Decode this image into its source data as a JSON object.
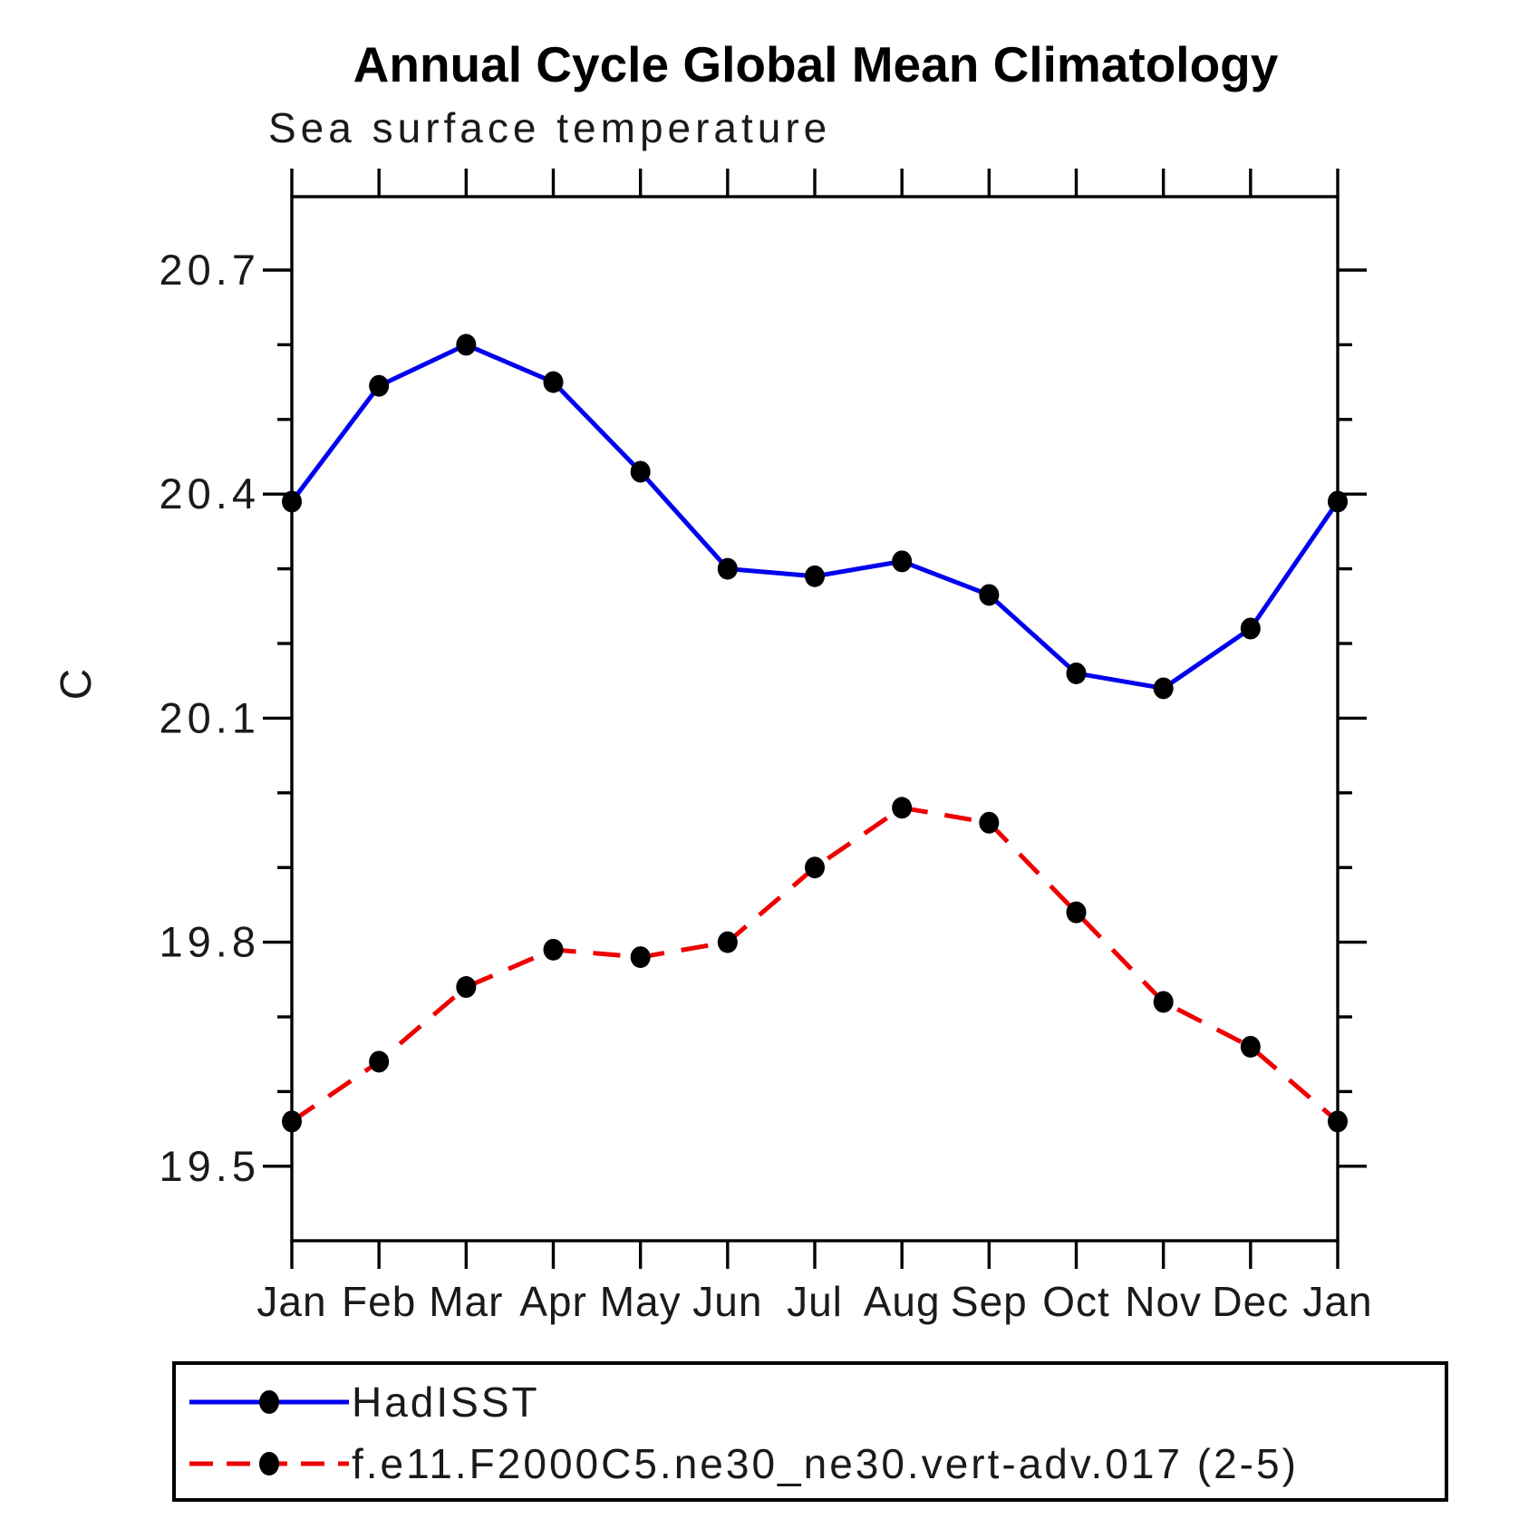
{
  "chart_data": {
    "type": "line",
    "title": "Annual Cycle Global Mean Climatology",
    "subtitle": "Sea surface temperature",
    "ylabel": "C",
    "xlabel": "",
    "categories": [
      "Jan",
      "Feb",
      "Mar",
      "Apr",
      "May",
      "Jun",
      "Jul",
      "Aug",
      "Sep",
      "Oct",
      "Nov",
      "Dec",
      "Jan"
    ],
    "series": [
      {
        "name": "HadISST",
        "color": "#0000ee",
        "line_style": "solid",
        "marker": "filled-circle",
        "marker_color": "#000000",
        "values": [
          20.39,
          20.545,
          20.6,
          20.55,
          20.43,
          20.3,
          20.29,
          20.31,
          20.265,
          20.16,
          20.14,
          20.22,
          20.39
        ]
      },
      {
        "name": "f.e11.F2000C5.ne30_ne30.vert-adv.017 (2-5)",
        "color": "#ee0000",
        "line_style": "dashed",
        "marker": "filled-circle",
        "marker_color": "#000000",
        "values": [
          19.56,
          19.64,
          19.74,
          19.79,
          19.78,
          19.8,
          19.9,
          19.98,
          19.96,
          19.84,
          19.72,
          19.66,
          19.56
        ]
      }
    ],
    "ylim": [
      19.4,
      20.8
    ],
    "y_major_ticks": [
      19.5,
      19.8,
      20.1,
      20.4,
      20.7
    ],
    "y_minor_tick_step": 0.1,
    "axis_color": "#000000",
    "grid": false,
    "legend_position": "bottom"
  }
}
